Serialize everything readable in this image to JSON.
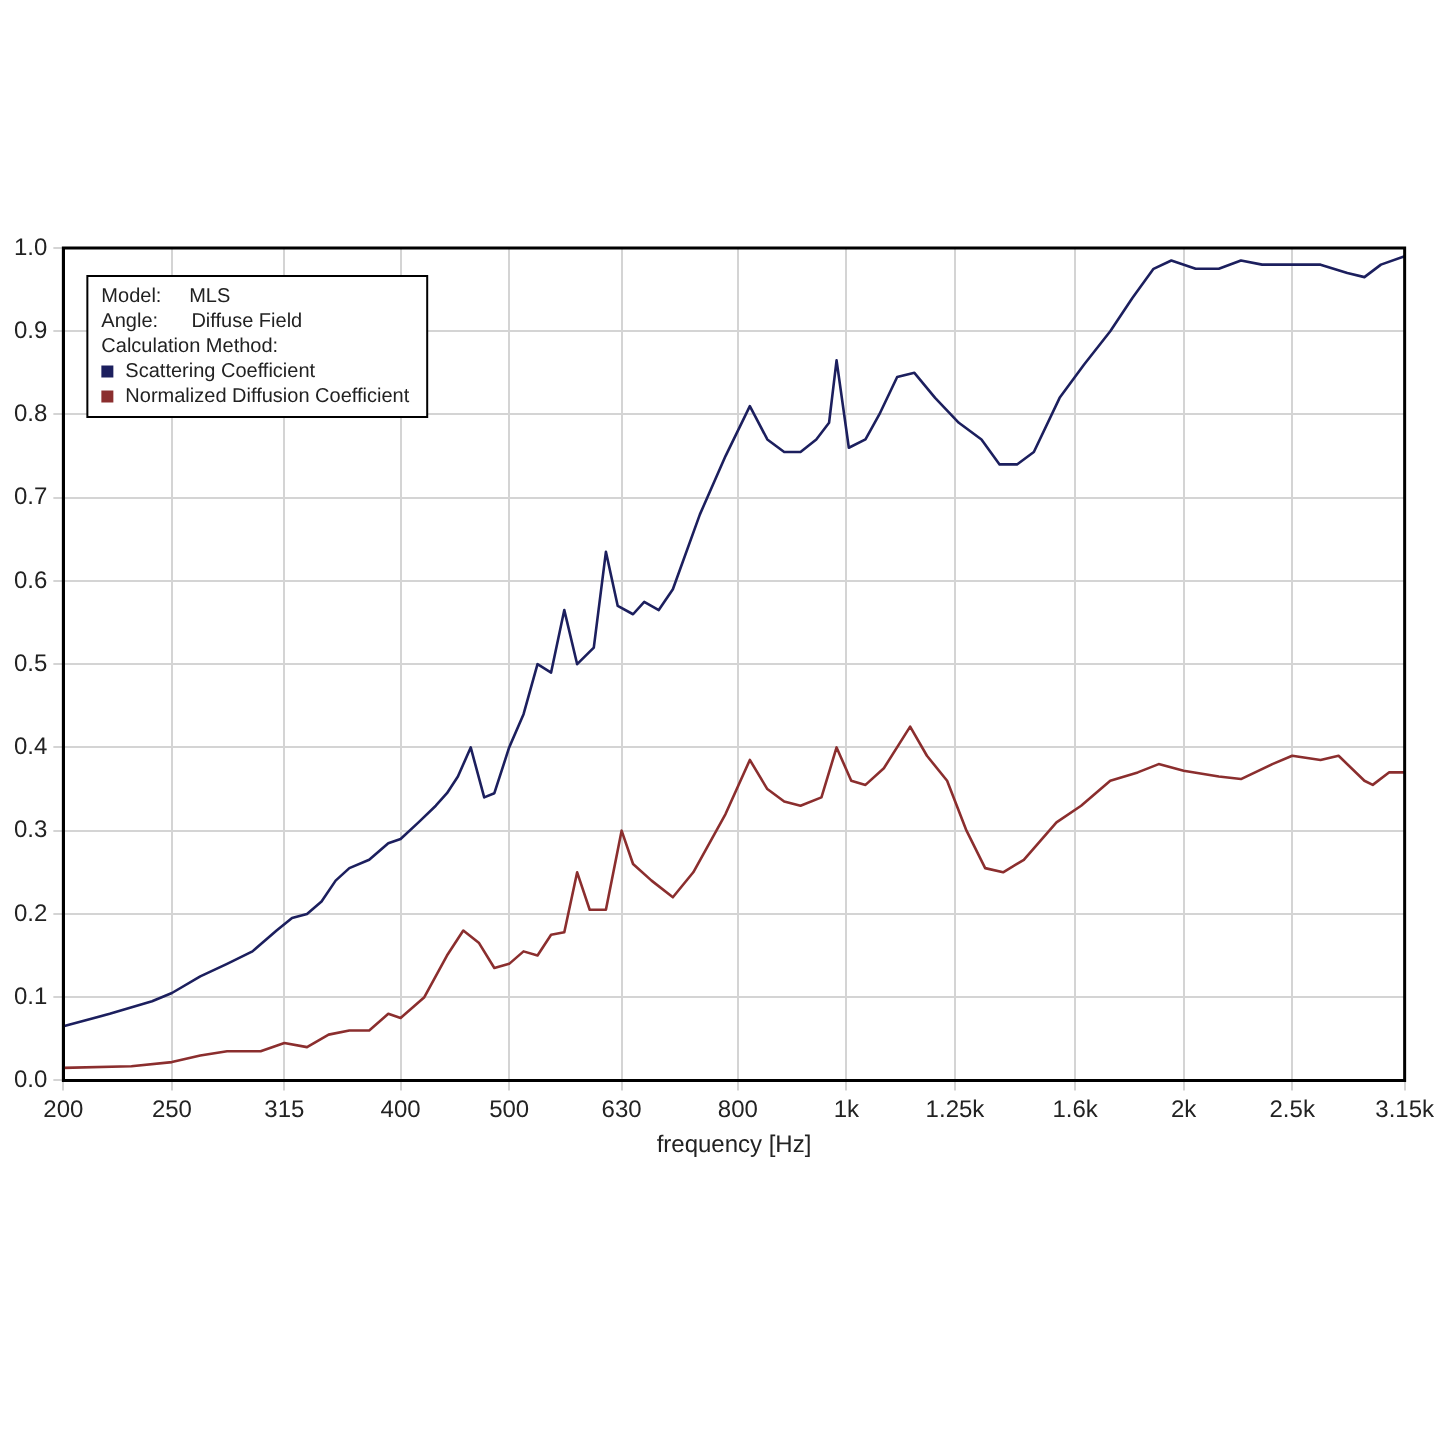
{
  "chart_data": {
    "type": "line",
    "xlabel": "frequency [Hz]",
    "log": "x",
    "grid": true,
    "legend": "top left",
    "marker": "none",
    "line_style": "solid",
    "annotations": [
      "Model:     MLS",
      "Angle:      Diffuse Field",
      "Calculation Method:"
    ],
    "xlim": [
      200,
      3150
    ],
    "xticks": [
      200,
      250,
      315,
      400,
      500,
      630,
      800,
      {
        "value": 1000,
        "label": "1k"
      },
      {
        "value": 1250,
        "label": "1.25k"
      },
      {
        "value": 1600,
        "label": "1.6k"
      },
      {
        "value": 2000,
        "label": "2k"
      },
      {
        "value": 2500,
        "label": "2.5k"
      },
      {
        "value": 3150,
        "label": "3.15k"
      }
    ],
    "ylim": [
      0,
      1
    ],
    "yticks": [
      {
        "value": 0,
        "label": "0.0"
      },
      0.1,
      0.2,
      0.3,
      0.4,
      0.5,
      0.6,
      0.7,
      0.8,
      0.9,
      {
        "value": 1,
        "label": "1.0"
      }
    ],
    "series": [
      {
        "name": "Scattering Coefficient",
        "color": "#1c1f5e",
        "x": [
          200,
          220,
          240,
          250,
          265,
          280,
          295,
          310,
          320,
          330,
          340,
          350,
          360,
          375,
          390,
          400,
          415,
          430,
          440,
          450,
          462,
          475,
          485,
          500,
          515,
          530,
          545,
          560,
          575,
          595,
          610,
          625,
          645,
          660,
          680,
          700,
          740,
          780,
          820,
          850,
          880,
          910,
          940,
          965,
          980,
          1005,
          1040,
          1070,
          1110,
          1150,
          1200,
          1260,
          1320,
          1370,
          1420,
          1470,
          1550,
          1630,
          1720,
          1800,
          1880,
          1950,
          2050,
          2150,
          2250,
          2350,
          2500,
          2650,
          2800,
          2900,
          3000,
          3150
        ],
        "values": [
          0.065,
          0.08,
          0.095,
          0.105,
          0.125,
          0.14,
          0.155,
          0.18,
          0.195,
          0.2,
          0.215,
          0.24,
          0.255,
          0.265,
          0.285,
          0.29,
          0.31,
          0.33,
          0.345,
          0.365,
          0.4,
          0.34,
          0.345,
          0.4,
          0.44,
          0.5,
          0.49,
          0.565,
          0.5,
          0.52,
          0.635,
          0.57,
          0.56,
          0.575,
          0.565,
          0.59,
          0.68,
          0.75,
          0.81,
          0.77,
          0.755,
          0.755,
          0.77,
          0.79,
          0.865,
          0.76,
          0.77,
          0.8,
          0.845,
          0.85,
          0.82,
          0.79,
          0.77,
          0.74,
          0.74,
          0.755,
          0.82,
          0.86,
          0.9,
          0.94,
          0.975,
          0.985,
          0.975,
          0.975,
          0.985,
          0.98,
          0.98,
          0.98,
          0.97,
          0.965,
          0.98,
          0.99
        ]
      },
      {
        "name": "Normalized Diffusion Coefficient",
        "color": "#8b2e2e",
        "x": [
          200,
          230,
          250,
          265,
          280,
          300,
          315,
          330,
          345,
          360,
          375,
          390,
          400,
          420,
          440,
          455,
          470,
          485,
          500,
          515,
          530,
          545,
          560,
          575,
          590,
          610,
          630,
          645,
          670,
          700,
          730,
          780,
          820,
          850,
          880,
          910,
          950,
          980,
          1010,
          1040,
          1080,
          1140,
          1180,
          1230,
          1280,
          1330,
          1380,
          1440,
          1540,
          1620,
          1720,
          1820,
          1900,
          2000,
          2150,
          2250,
          2400,
          2500,
          2650,
          2750,
          2900,
          2950,
          3050,
          3150
        ],
        "values": [
          0.015,
          0.017,
          0.022,
          0.03,
          0.035,
          0.035,
          0.045,
          0.04,
          0.055,
          0.06,
          0.06,
          0.08,
          0.075,
          0.1,
          0.15,
          0.18,
          0.165,
          0.135,
          0.14,
          0.155,
          0.15,
          0.175,
          0.178,
          0.25,
          0.205,
          0.205,
          0.3,
          0.26,
          0.24,
          0.22,
          0.25,
          0.32,
          0.385,
          0.35,
          0.335,
          0.33,
          0.34,
          0.4,
          0.36,
          0.355,
          0.375,
          0.425,
          0.39,
          0.36,
          0.3,
          0.255,
          0.25,
          0.265,
          0.31,
          0.33,
          0.36,
          0.37,
          0.38,
          0.372,
          0.365,
          0.362,
          0.38,
          0.39,
          0.385,
          0.39,
          0.36,
          0.355,
          0.37,
          0.37
        ]
      }
    ]
  }
}
